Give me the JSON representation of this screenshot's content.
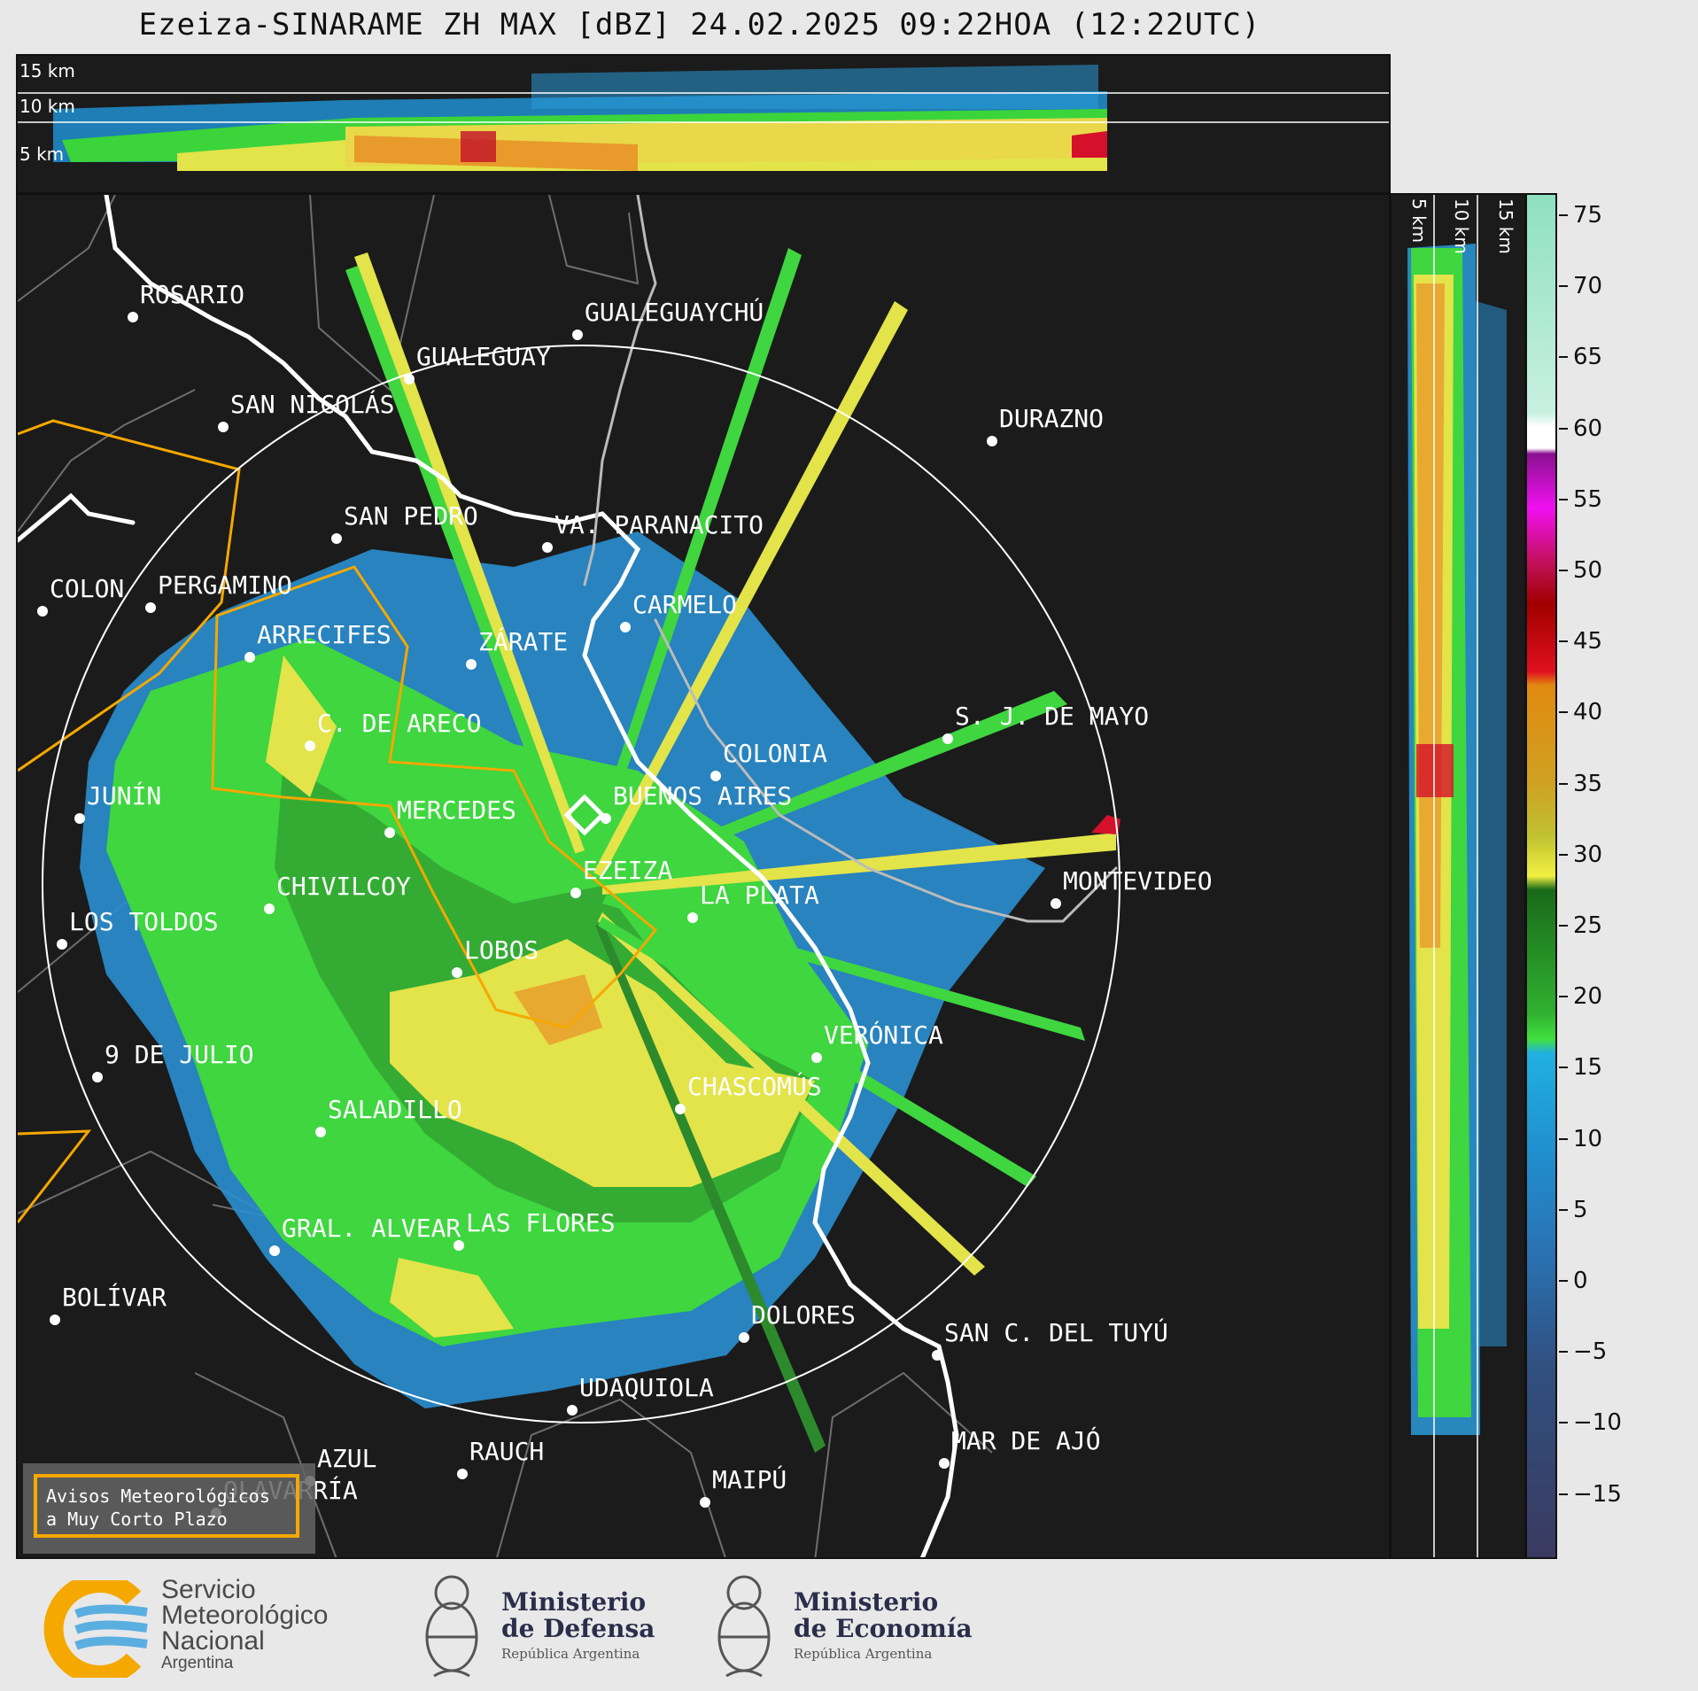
{
  "title": "Ezeiza-SINARAME ZH MAX [dBZ] 24.02.2025 09:22HOA (12:22UTC)",
  "top_panel": {
    "height_labels": [
      "15 km",
      "10 km",
      "5 km"
    ]
  },
  "side_panel": {
    "height_labels": [
      "5 km",
      "10 km",
      "15 km"
    ]
  },
  "cities": [
    {
      "name": "ROSARIO"
    },
    {
      "name": "GUALEGUAYCHÚ"
    },
    {
      "name": "GUALEGUAY"
    },
    {
      "name": "SAN NICOLÁS"
    },
    {
      "name": "DURAZNO"
    },
    {
      "name": "SAN PEDRO"
    },
    {
      "name": "VA. PARANACITO"
    },
    {
      "name": "COLON"
    },
    {
      "name": "PERGAMINO"
    },
    {
      "name": "CARMELO"
    },
    {
      "name": "ARRECIFES"
    },
    {
      "name": "ZÁRATE"
    },
    {
      "name": "S. J. DE MAYO"
    },
    {
      "name": "C. DE ARECO"
    },
    {
      "name": "COLONIA"
    },
    {
      "name": "JUNÍN"
    },
    {
      "name": "MERCEDES"
    },
    {
      "name": "BUENOS AIRES"
    },
    {
      "name": "EZEIZA"
    },
    {
      "name": "CHIVILCOY"
    },
    {
      "name": "LA PLATA"
    },
    {
      "name": "MONTEVIDEO"
    },
    {
      "name": "LOS TOLDOS"
    },
    {
      "name": "LOBOS"
    },
    {
      "name": "VERÓNICA"
    },
    {
      "name": "9 DE JULIO"
    },
    {
      "name": "CHASCOMÚS"
    },
    {
      "name": "SALADILLO"
    },
    {
      "name": "GRAL. ALVEAR"
    },
    {
      "name": "LAS FLORES"
    },
    {
      "name": "BOLÍVAR"
    },
    {
      "name": "DOLORES"
    },
    {
      "name": "SAN C. DEL TUYÚ"
    },
    {
      "name": "UDAQUIOLA"
    },
    {
      "name": "AZUL"
    },
    {
      "name": "RAUCH"
    },
    {
      "name": "MAR DE AJÓ"
    },
    {
      "name": "OLAVARRÍA"
    },
    {
      "name": "MAIPÚ"
    }
  ],
  "colorbar": {
    "unit": "dBZ",
    "ticks": [
      "75",
      "70",
      "65",
      "60",
      "55",
      "50",
      "45",
      "40",
      "35",
      "30",
      "25",
      "20",
      "15",
      "10",
      "5",
      "0",
      "−5",
      "−10",
      "−15"
    ]
  },
  "warning": {
    "line1": "Avisos Meteorológicos",
    "line2": "a Muy Corto Plazo"
  },
  "footer": {
    "smn_line1": "Servicio",
    "smn_line2": "Meteorológico",
    "smn_line3": "Nacional",
    "smn_line4": "Argentina",
    "defensa_line1": "Ministerio",
    "defensa_line2": "de Defensa",
    "defensa_sub": "República Argentina",
    "economia_line1": "Ministerio",
    "economia_line2": "de Economía",
    "economia_sub": "República Argentina"
  }
}
